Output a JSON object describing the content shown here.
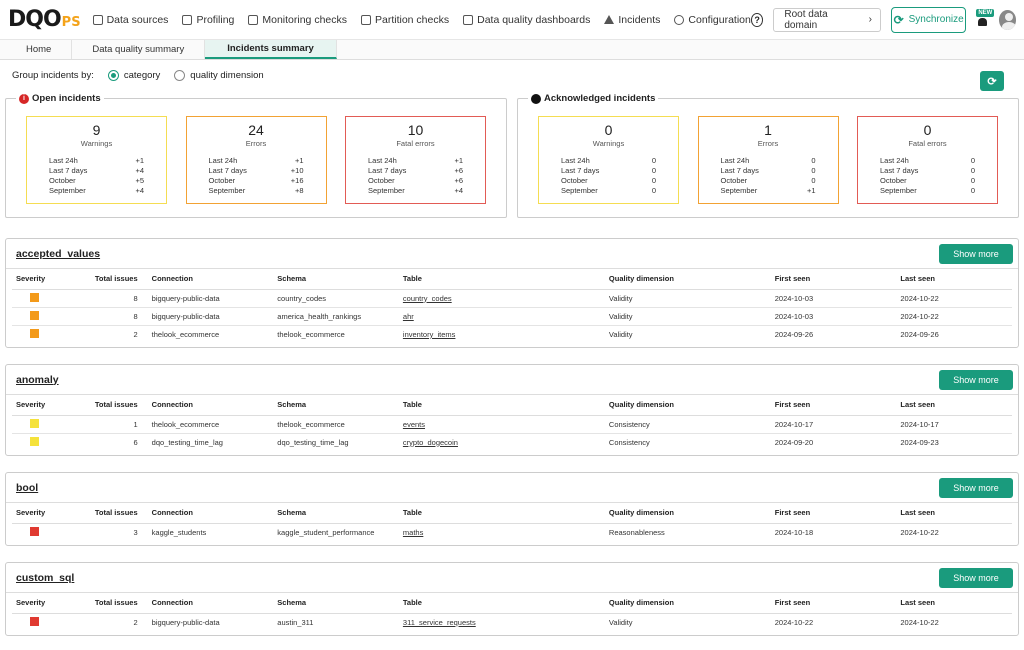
{
  "brand": {
    "main": "DQO",
    "sub": "PS"
  },
  "nav": [
    {
      "label": "Data sources",
      "icon": "data-sources-icon"
    },
    {
      "label": "Profiling",
      "icon": "profiling-icon"
    },
    {
      "label": "Monitoring checks",
      "icon": "monitoring-checks-icon"
    },
    {
      "label": "Partition checks",
      "icon": "partition-checks-icon"
    },
    {
      "label": "Data quality dashboards",
      "icon": "dashboards-icon"
    },
    {
      "label": "Incidents",
      "icon": "incidents-icon"
    },
    {
      "label": "Configuration",
      "icon": "gear-icon"
    }
  ],
  "header": {
    "help": "?",
    "domain": "Root data domain",
    "domain_arrow": "›",
    "sync": "Synchronize",
    "new_badge": "NEW"
  },
  "tabs": [
    "Home",
    "Data quality summary",
    "Incidents summary"
  ],
  "group_by": {
    "label": "Group incidents by:",
    "options": [
      "category",
      "quality dimension"
    ],
    "selected": "category"
  },
  "open_incidents": {
    "title": "Open incidents",
    "cards": [
      {
        "count": "9",
        "label": "Warnings",
        "rows": [
          [
            "Last 24h",
            "+1"
          ],
          [
            "Last 7 days",
            "+4"
          ],
          [
            "October",
            "+5"
          ],
          [
            "September",
            "+4"
          ]
        ]
      },
      {
        "count": "24",
        "label": "Errors",
        "rows": [
          [
            "Last 24h",
            "+1"
          ],
          [
            "Last 7 days",
            "+10"
          ],
          [
            "October",
            "+16"
          ],
          [
            "September",
            "+8"
          ]
        ]
      },
      {
        "count": "10",
        "label": "Fatal errors",
        "rows": [
          [
            "Last 24h",
            "+1"
          ],
          [
            "Last 7 days",
            "+6"
          ],
          [
            "October",
            "+6"
          ],
          [
            "September",
            "+4"
          ]
        ]
      }
    ]
  },
  "ack_incidents": {
    "title": "Acknowledged incidents",
    "cards": [
      {
        "count": "0",
        "label": "Warnings",
        "rows": [
          [
            "Last 24h",
            "0"
          ],
          [
            "Last 7 days",
            "0"
          ],
          [
            "October",
            "0"
          ],
          [
            "September",
            "0"
          ]
        ]
      },
      {
        "count": "1",
        "label": "Errors",
        "rows": [
          [
            "Last 24h",
            "0"
          ],
          [
            "Last 7 days",
            "0"
          ],
          [
            "October",
            "0"
          ],
          [
            "September",
            "+1"
          ]
        ]
      },
      {
        "count": "0",
        "label": "Fatal errors",
        "rows": [
          [
            "Last 24h",
            "0"
          ],
          [
            "Last 7 days",
            "0"
          ],
          [
            "October",
            "0"
          ],
          [
            "September",
            "0"
          ]
        ]
      }
    ]
  },
  "columns": [
    "Severity",
    "Total issues",
    "Connection",
    "Schema",
    "Table",
    "Quality dimension",
    "First seen",
    "Last seen"
  ],
  "show_more": "Show more",
  "categories": [
    {
      "name": "accepted_values",
      "rows": [
        {
          "severity": "error",
          "total": "8",
          "connection": "bigquery-public-data",
          "schema": "country_codes",
          "table": "country_codes",
          "dimension": "Validity",
          "first": "2024-10-03",
          "last": "2024-10-22"
        },
        {
          "severity": "error",
          "total": "8",
          "connection": "bigquery-public-data",
          "schema": "america_health_rankings",
          "table": "ahr",
          "dimension": "Validity",
          "first": "2024-10-03",
          "last": "2024-10-22"
        },
        {
          "severity": "error",
          "total": "2",
          "connection": "thelook_ecommerce",
          "schema": "thelook_ecommerce",
          "table": "inventory_items",
          "dimension": "Validity",
          "first": "2024-09-26",
          "last": "2024-09-26"
        }
      ]
    },
    {
      "name": "anomaly",
      "rows": [
        {
          "severity": "warning",
          "total": "1",
          "connection": "thelook_ecommerce",
          "schema": "thelook_ecommerce",
          "table": "events",
          "dimension": "Consistency",
          "first": "2024-10-17",
          "last": "2024-10-17"
        },
        {
          "severity": "warning",
          "total": "6",
          "connection": "dqo_testing_time_lag",
          "schema": "dqo_testing_time_lag",
          "table": "crypto_dogecoin",
          "dimension": "Consistency",
          "first": "2024-09-20",
          "last": "2024-09-23"
        }
      ]
    },
    {
      "name": "bool",
      "rows": [
        {
          "severity": "fatal",
          "total": "3",
          "connection": "kaggle_students",
          "schema": "kaggle_student_performance",
          "table": "maths",
          "dimension": "Reasonableness",
          "first": "2024-10-18",
          "last": "2024-10-22"
        }
      ]
    },
    {
      "name": "custom_sql",
      "rows": [
        {
          "severity": "fatal",
          "total": "2",
          "connection": "bigquery-public-data",
          "schema": "austin_311",
          "table": "311_service_requests",
          "dimension": "Validity",
          "first": "2024-10-22",
          "last": "2024-10-22"
        }
      ]
    }
  ],
  "colors": {
    "accent": "#1a9b7d",
    "warning": "#f5e23b",
    "error": "#f39a1a",
    "fatal": "#e03a31"
  }
}
